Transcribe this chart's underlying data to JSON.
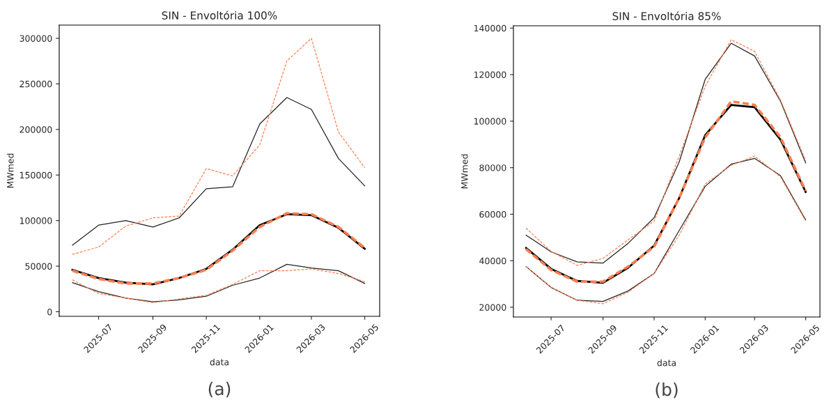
{
  "chart_data": [
    {
      "type": "line",
      "title": "SIN - Envoltória 100%",
      "xlabel": "data",
      "ylabel": "MWmed",
      "annotations": [
        "(a)"
      ],
      "x": [
        "2025-06-01",
        "2025-07-01",
        "2025-08-01",
        "2025-09-01",
        "2025-10-01",
        "2025-11-01",
        "2025-12-01",
        "2026-01-01",
        "2026-02-01",
        "2026-03-01",
        "2026-04-01",
        "2026-05-01"
      ],
      "xlim": [
        "2025-05-17",
        "2026-05-18"
      ],
      "xticks": [
        {
          "value": "2025-07-01",
          "label": "2025-07"
        },
        {
          "value": "2025-09-01",
          "label": "2025-09"
        },
        {
          "value": "2025-11-01",
          "label": "2025-11"
        },
        {
          "value": "2026-01-01",
          "label": "2026-01"
        },
        {
          "value": "2026-03-01",
          "label": "2026-03"
        },
        {
          "value": "2026-05-01",
          "label": "2026-05"
        }
      ],
      "ylim": [
        -5000,
        314500
      ],
      "yticks": [
        0,
        50000,
        100000,
        150000,
        200000,
        250000,
        300000
      ],
      "grid": false,
      "series": [
        {
          "color": "#000000",
          "line_style": "solid",
          "values": [
            46000,
            37000,
            32000,
            30000,
            37000,
            47000,
            68000,
            95000,
            107000,
            106000,
            92000,
            69000
          ]
        },
        {
          "color": "#ff7f50",
          "line_style": "dashed",
          "values": [
            45000,
            36000,
            31000,
            31000,
            37000,
            46000,
            67000,
            93000,
            108000,
            107000,
            93000,
            70000
          ]
        },
        {
          "color": "#222222",
          "line_style": "solid",
          "values": [
            73000,
            95000,
            100000,
            93000,
            103000,
            135000,
            137000,
            206000,
            235000,
            222000,
            168000,
            138000
          ]
        },
        {
          "color": "#ff7f50",
          "line_style": "dashed",
          "values": [
            63000,
            71000,
            94000,
            103000,
            105000,
            157000,
            149000,
            183000,
            275000,
            300000,
            197000,
            158000
          ]
        },
        {
          "color": "#222222",
          "line_style": "solid",
          "values": [
            32000,
            22000,
            15000,
            11000,
            13000,
            17000,
            29000,
            37000,
            52000,
            48000,
            45000,
            31000
          ]
        },
        {
          "color": "#ff7f50",
          "line_style": "dashed",
          "values": [
            35000,
            20000,
            15000,
            10000,
            14000,
            18000,
            30000,
            45000,
            45000,
            47000,
            42000,
            33000
          ]
        }
      ]
    },
    {
      "type": "line",
      "title": "SIN - Envoltória 85%",
      "xlabel": "data",
      "ylabel": "MWmed",
      "annotations": [
        "(b)"
      ],
      "x": [
        "2025-06-01",
        "2025-07-01",
        "2025-08-01",
        "2025-09-01",
        "2025-10-01",
        "2025-11-01",
        "2025-12-01",
        "2026-01-01",
        "2026-02-01",
        "2026-03-01",
        "2026-04-01",
        "2026-05-01"
      ],
      "xlim": [
        "2025-05-17",
        "2026-05-18"
      ],
      "xticks": [
        {
          "value": "2025-07-01",
          "label": "2025-07"
        },
        {
          "value": "2025-09-01",
          "label": "2025-09"
        },
        {
          "value": "2025-11-01",
          "label": "2025-11"
        },
        {
          "value": "2026-01-01",
          "label": "2026-01"
        },
        {
          "value": "2026-03-01",
          "label": "2026-03"
        },
        {
          "value": "2026-05-01",
          "label": "2026-05"
        }
      ],
      "ylim": [
        15800,
        141000
      ],
      "yticks": [
        20000,
        40000,
        60000,
        80000,
        100000,
        120000,
        140000
      ],
      "grid": false,
      "series": [
        {
          "color": "#000000",
          "line_style": "solid",
          "values": [
            45500,
            36500,
            31300,
            30500,
            37000,
            46500,
            67000,
            94000,
            107000,
            106000,
            92000,
            69500
          ]
        },
        {
          "color": "#ff7f50",
          "line_style": "dashed",
          "values": [
            45000,
            36000,
            31000,
            31000,
            37500,
            46000,
            67000,
            93000,
            108500,
            107000,
            93000,
            70000
          ]
        },
        {
          "color": "#222222",
          "line_style": "solid",
          "values": [
            51000,
            43800,
            39500,
            39000,
            47500,
            58500,
            82500,
            118000,
            133500,
            128000,
            108500,
            82000
          ]
        },
        {
          "color": "#ff7f50",
          "line_style": "dashed",
          "values": [
            54000,
            44000,
            38000,
            41000,
            49000,
            57000,
            85000,
            115000,
            135000,
            130000,
            109000,
            83000
          ]
        },
        {
          "color": "#222222",
          "line_style": "solid",
          "values": [
            37500,
            28500,
            23000,
            22500,
            27000,
            34500,
            53000,
            72000,
            81500,
            84000,
            76500,
            57500
          ]
        },
        {
          "color": "#ff7f50",
          "line_style": "dashed",
          "values": [
            37500,
            28500,
            23000,
            21500,
            26500,
            34500,
            51000,
            73000,
            81000,
            85000,
            76000,
            57000
          ]
        }
      ]
    }
  ]
}
